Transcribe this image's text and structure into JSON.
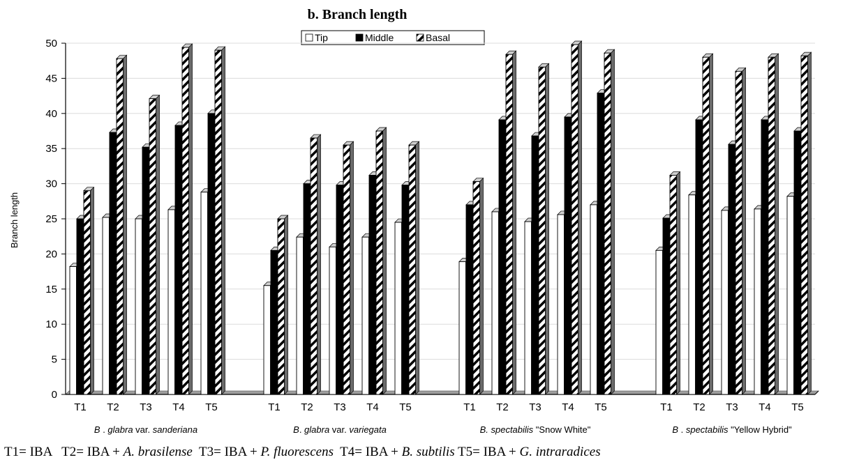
{
  "chart_data": {
    "type": "bar",
    "title": "b. Branch length",
    "ylabel": "Branch length",
    "xlabel": "",
    "ylim": [
      0,
      50
    ],
    "yticks": [
      0,
      5,
      10,
      15,
      20,
      25,
      30,
      35,
      40,
      45,
      50
    ],
    "legend_position": "top-center",
    "series": [
      {
        "name": "Tip",
        "fill": "#ffffff"
      },
      {
        "name": "Middle",
        "fill": "#000000"
      },
      {
        "name": "Basal",
        "fill": "hatch"
      }
    ],
    "groups": [
      {
        "name_parts": [
          {
            "text": "B",
            "italic": true
          },
          {
            "text": " . ",
            "italic": false
          },
          {
            "text": "glabra",
            "italic": true
          },
          {
            "text": " var. ",
            "italic": false
          },
          {
            "text": "sanderiana",
            "italic": true
          }
        ],
        "categories": [
          "T1",
          "T2",
          "T3",
          "T4",
          "T5"
        ],
        "values": {
          "Tip": [
            18.2,
            25.2,
            25.0,
            26.3,
            28.8
          ],
          "Middle": [
            25.0,
            37.3,
            35.2,
            38.3,
            40.0
          ],
          "Basal": [
            29.0,
            47.8,
            42.1,
            49.4,
            49.0
          ]
        }
      },
      {
        "name_parts": [
          {
            "text": "B",
            "italic": true
          },
          {
            "text": ". ",
            "italic": false
          },
          {
            "text": "glabra",
            "italic": true
          },
          {
            "text": " var. ",
            "italic": false
          },
          {
            "text": "variegata",
            "italic": true
          }
        ],
        "categories": [
          "T1",
          "T2",
          "T3",
          "T4",
          "T5"
        ],
        "values": {
          "Tip": [
            15.5,
            22.4,
            21.0,
            22.4,
            24.5
          ],
          "Middle": [
            20.5,
            30.0,
            29.8,
            31.2,
            29.8
          ],
          "Basal": [
            25.0,
            36.5,
            35.5,
            37.5,
            35.5
          ]
        }
      },
      {
        "name_parts": [
          {
            "text": "B. spectabilis",
            "italic": true
          },
          {
            "text": " \"Snow White\"",
            "italic": false
          }
        ],
        "categories": [
          "T1",
          "T2",
          "T3",
          "T4",
          "T5"
        ],
        "values": {
          "Tip": [
            18.9,
            26.0,
            24.6,
            25.6,
            27.0
          ],
          "Middle": [
            27.0,
            39.1,
            36.8,
            39.5,
            42.9
          ],
          "Basal": [
            30.3,
            48.4,
            46.6,
            49.8,
            48.6
          ]
        }
      },
      {
        "name_parts": [
          {
            "text": "B",
            "italic": true
          },
          {
            "text": " . ",
            "italic": false
          },
          {
            "text": "spectabilis",
            "italic": true
          },
          {
            "text": " \"Yellow Hybrid\"",
            "italic": false
          }
        ],
        "categories": [
          "T1",
          "T2",
          "T3",
          "T4",
          "T5"
        ],
        "values": {
          "Tip": [
            20.5,
            28.4,
            26.2,
            26.4,
            28.2
          ],
          "Middle": [
            25.1,
            39.1,
            35.6,
            39.1,
            37.5
          ],
          "Basal": [
            31.2,
            48.0,
            46.0,
            48.0,
            48.2
          ]
        }
      }
    ]
  },
  "footnote": {
    "parts": [
      {
        "text": "T1= IBA   T2= IBA + ",
        "italic": false
      },
      {
        "text": "A. brasilense",
        "italic": true
      },
      {
        "text": "  T3= IBA + ",
        "italic": false
      },
      {
        "text": "P. fluorescens",
        "italic": true
      },
      {
        "text": "  T4= IBA + ",
        "italic": false
      },
      {
        "text": "B. subtilis",
        "italic": true
      },
      {
        "text": " T5= IBA + ",
        "italic": false
      },
      {
        "text": "G. intraradices",
        "italic": true
      }
    ]
  }
}
